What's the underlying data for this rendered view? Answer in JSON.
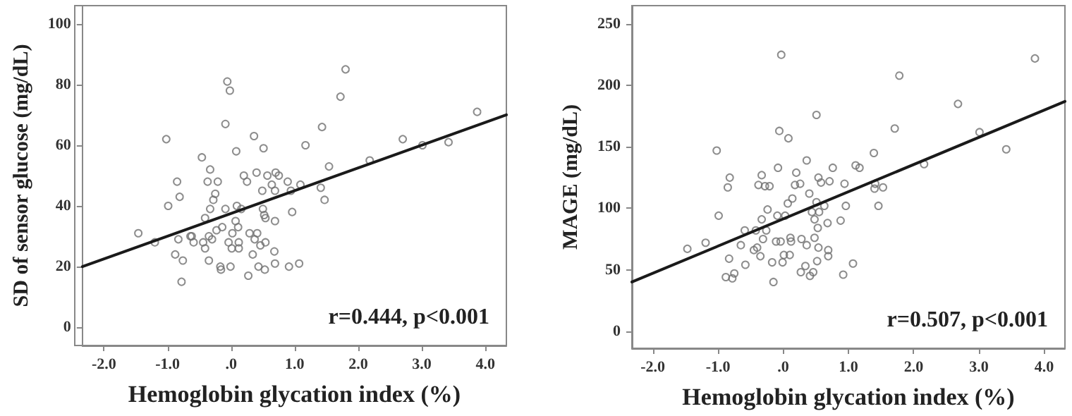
{
  "chart_data": [
    {
      "type": "scatter",
      "xlabel": "Hemoglobin glycation index (%)",
      "ylabel": "SD of sensor glucose (mg/dL)",
      "annotations": [
        "r=0.444, p<0.001"
      ],
      "xlim": [
        -2.34,
        4.33
      ],
      "ylim": [
        -6,
        106
      ],
      "xticks": [
        {
          "value": -2,
          "label": "-2.0"
        },
        {
          "value": -1,
          "label": "-1.0"
        },
        {
          "value": 0,
          "label": ".0"
        },
        {
          "value": 1,
          "label": "1.0"
        },
        {
          "value": 2,
          "label": "2.0"
        },
        {
          "value": 3,
          "label": "3.0"
        },
        {
          "value": 4,
          "label": "4.0"
        }
      ],
      "yticks": [
        0,
        20,
        40,
        60,
        80,
        100
      ],
      "grid": false,
      "marker": "circle",
      "series": [
        {
          "color": "#707070",
          "x": [
            -1.46,
            -1.2,
            -1.02,
            -0.99,
            -0.88,
            -0.85,
            -0.83,
            -0.81,
            -0.78,
            -0.76,
            -0.64,
            -0.59,
            -0.62,
            -0.46,
            -0.44,
            -0.41,
            -0.41,
            -0.37,
            -0.35,
            -0.35,
            -0.33,
            -0.33,
            -0.3,
            -0.28,
            -0.25,
            -0.23,
            -0.21,
            -0.17,
            -0.16,
            -0.14,
            -0.09,
            -0.09,
            -0.06,
            -0.02,
            -0.04,
            -0.01,
            0.01,
            0.02,
            0.07,
            0.08,
            0.09,
            0.11,
            0.12,
            0.12,
            0.16,
            0.2,
            0.25,
            0.27,
            0.29,
            0.34,
            0.36,
            0.37,
            0.41,
            0.4,
            0.43,
            0.46,
            0.49,
            0.51,
            0.5,
            0.52,
            0.53,
            0.54,
            0.54,
            0.57,
            0.64,
            0.68,
            0.69,
            0.69,
            0.69,
            0.7,
            0.75,
            0.89,
            0.91,
            0.94,
            0.96,
            1.07,
            1.09,
            1.17,
            1.41,
            1.47,
            1.43,
            1.54,
            1.72,
            1.8,
            2.18,
            2.7,
            3.01,
            3.42,
            3.87
          ],
          "values": [
            31,
            28,
            62,
            40,
            24,
            48,
            29,
            43,
            15,
            22,
            30,
            28,
            30,
            56,
            28,
            36,
            26,
            48,
            30,
            22,
            52,
            39,
            29,
            42,
            44,
            32,
            48,
            20,
            19,
            33,
            39,
            67,
            81,
            78,
            28,
            20,
            26,
            31,
            35,
            58,
            40,
            33,
            28,
            26,
            39,
            50,
            48,
            17,
            31,
            24,
            63,
            29,
            31,
            51,
            20,
            27,
            45,
            59,
            39,
            37,
            19,
            36,
            28,
            50,
            47,
            25,
            21,
            45,
            35,
            51,
            50,
            48,
            20,
            45,
            38,
            21,
            47,
            60,
            46,
            42,
            66,
            53,
            76,
            85,
            55,
            62,
            60,
            61,
            71
          ]
        },
        {
          "type": "line",
          "color": "#1a1a1a",
          "line_style": "solid",
          "marker": "none",
          "x": [
            -2.34,
            4.33
          ],
          "values": [
            20,
            70
          ]
        }
      ]
    },
    {
      "type": "scatter",
      "xlabel": "Hemoglobin glycation index (%)",
      "ylabel": "MAGE (mg/dL)",
      "annotations": [
        "r=0.507, p<0.001"
      ],
      "xlim": [
        -2.32,
        4.32
      ],
      "ylim": [
        -14,
        265
      ],
      "xticks": [
        {
          "value": -2,
          "label": "-2.0"
        },
        {
          "value": -1,
          "label": "-1.0"
        },
        {
          "value": 0,
          "label": ".0"
        },
        {
          "value": 1,
          "label": "1.0"
        },
        {
          "value": 2,
          "label": "2.0"
        },
        {
          "value": 3,
          "label": "3.0"
        },
        {
          "value": 4,
          "label": "4.0"
        }
      ],
      "yticks": [
        0,
        50,
        100,
        150,
        200,
        250
      ],
      "grid": false,
      "marker": "circle",
      "series": [
        {
          "color": "#707070",
          "x": [
            -1.47,
            -1.19,
            -1.02,
            -0.99,
            -0.85,
            -0.82,
            -0.88,
            -0.83,
            -0.78,
            -0.75,
            -0.65,
            -0.59,
            -0.58,
            -0.45,
            -0.42,
            -0.4,
            -0.38,
            -0.35,
            -0.33,
            -0.33,
            -0.31,
            -0.28,
            -0.26,
            -0.24,
            -0.21,
            -0.17,
            -0.15,
            -0.11,
            -0.09,
            -0.08,
            -0.06,
            -0.04,
            -0.03,
            -0.01,
            0.01,
            0.03,
            0.07,
            0.08,
            0.1,
            0.11,
            0.12,
            0.14,
            0.18,
            0.2,
            0.26,
            0.27,
            0.28,
            0.34,
            0.36,
            0.36,
            0.4,
            0.41,
            0.44,
            0.46,
            0.48,
            0.48,
            0.51,
            0.51,
            0.52,
            0.53,
            0.54,
            0.54,
            0.55,
            0.58,
            0.63,
            0.68,
            0.69,
            0.69,
            0.71,
            0.76,
            0.88,
            0.92,
            0.94,
            0.96,
            1.07,
            1.11,
            1.17,
            1.39,
            1.4,
            1.41,
            1.46,
            1.53,
            1.71,
            1.78,
            2.16,
            2.68,
            3.01,
            3.42,
            3.86
          ],
          "values": [
            67,
            72,
            147,
            94,
            117,
            125,
            44,
            59,
            43,
            47,
            70,
            82,
            54,
            66,
            82,
            68,
            119,
            61,
            127,
            91,
            75,
            118,
            82,
            99,
            118,
            56,
            40,
            73,
            94,
            133,
            163,
            73,
            225,
            56,
            62,
            94,
            104,
            157,
            62,
            76,
            73,
            108,
            119,
            129,
            120,
            48,
            75,
            53,
            70,
            139,
            112,
            45,
            97,
            48,
            76,
            91,
            105,
            176,
            57,
            84,
            68,
            125,
            97,
            121,
            102,
            88,
            66,
            61,
            122,
            133,
            90,
            46,
            120,
            102,
            55,
            135,
            133,
            145,
            116,
            120,
            102,
            117,
            165,
            208,
            136,
            185,
            162,
            148,
            222
          ]
        },
        {
          "type": "line",
          "color": "#1a1a1a",
          "line_style": "solid",
          "marker": "none",
          "x": [
            -2.32,
            4.32
          ],
          "values": [
            40,
            187
          ]
        }
      ]
    }
  ]
}
